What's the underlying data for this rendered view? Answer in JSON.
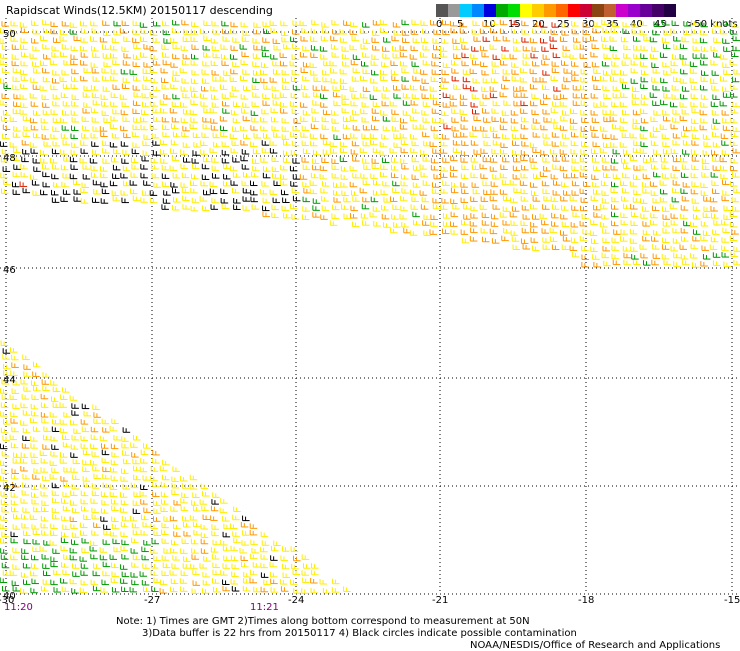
{
  "title": "Rapidscat Winds(12.5KM) 20150117 descending",
  "legend": {
    "labels": [
      "0",
      "5",
      "10",
      "15",
      "20",
      "25",
      "30",
      "35",
      "40",
      "45",
      ">50 knots"
    ],
    "colors": [
      "#555555",
      "#999999",
      "#00ccff",
      "#0088ff",
      "#0000dd",
      "#00aa00",
      "#00dd00",
      "#ffff00",
      "#ffcc00",
      "#ff9900",
      "#ff6600",
      "#ff0000",
      "#cc0033",
      "#8b4513",
      "#c06030",
      "#cc00cc",
      "#9900cc",
      "#660099",
      "#440066",
      "#220044"
    ]
  },
  "lat_labels": [
    "50",
    "48",
    "46",
    "44",
    "42",
    "40"
  ],
  "lon_labels": [
    "-30",
    "-27",
    "-24",
    "-21",
    "-18",
    "-15"
  ],
  "time_labels": [
    "11:20",
    "11:21"
  ],
  "notes": {
    "line1": "Note: 1) Times are GMT 2)Times along bottom correspond to measurement at 50N",
    "line2": "3)Data buffer is 22 hrs from 20150117 4) Black circles indicate possible contamination",
    "line3": "NOAA/NESDIS/Office of Research and Applications"
  },
  "colors": {
    "grid": "#000000",
    "time_label": "#800080",
    "barb_yellow": "#ffee00",
    "barb_orange": "#ff9900",
    "barb_red": "#dd2200",
    "barb_green": "#009900",
    "barb_black": "#000000",
    "barb_blue": "#0000cc"
  }
}
